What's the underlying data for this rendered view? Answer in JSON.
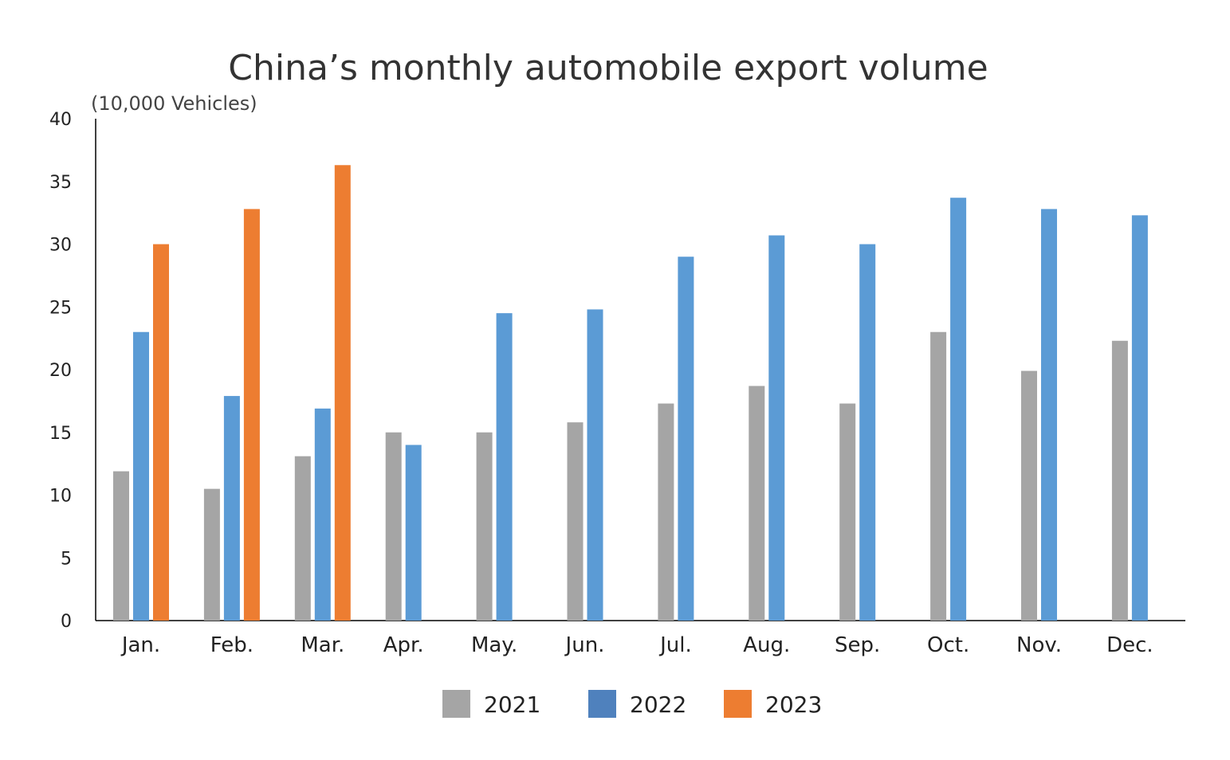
{
  "chart_data": {
    "type": "bar",
    "title": "China’s monthly automobile export volume",
    "ylabel": "(10,000 Vehicles)",
    "xlabel": "",
    "ylim": [
      0,
      40
    ],
    "yticks": [
      0,
      5,
      10,
      15,
      20,
      25,
      30,
      35,
      40
    ],
    "grid": false,
    "legend_position": "bottom",
    "categories": [
      "Jan.",
      "Feb.",
      "Mar.",
      "Apr.",
      "May.",
      "Jun.",
      "Jul.",
      "Aug.",
      "Sep.",
      "Oct.",
      "Nov.",
      "Dec."
    ],
    "series": [
      {
        "name": "2021",
        "color": "#a5a5a5",
        "legend_color": "#a5a5a5",
        "values": [
          11.9,
          10.5,
          13.1,
          15.0,
          15.0,
          15.8,
          17.3,
          18.7,
          17.3,
          23.0,
          19.9,
          22.3
        ]
      },
      {
        "name": "2022",
        "color": "#5b9bd5",
        "legend_color": "#4f81bd",
        "values": [
          23.0,
          17.9,
          16.9,
          14.0,
          24.5,
          24.8,
          29.0,
          30.7,
          30.0,
          33.7,
          32.8,
          32.3
        ]
      },
      {
        "name": "2023",
        "color": "#ed7d31",
        "legend_color": "#ed7d31",
        "values": [
          30.0,
          32.8,
          36.3,
          null,
          null,
          null,
          null,
          null,
          null,
          null,
          null,
          null
        ]
      }
    ]
  }
}
